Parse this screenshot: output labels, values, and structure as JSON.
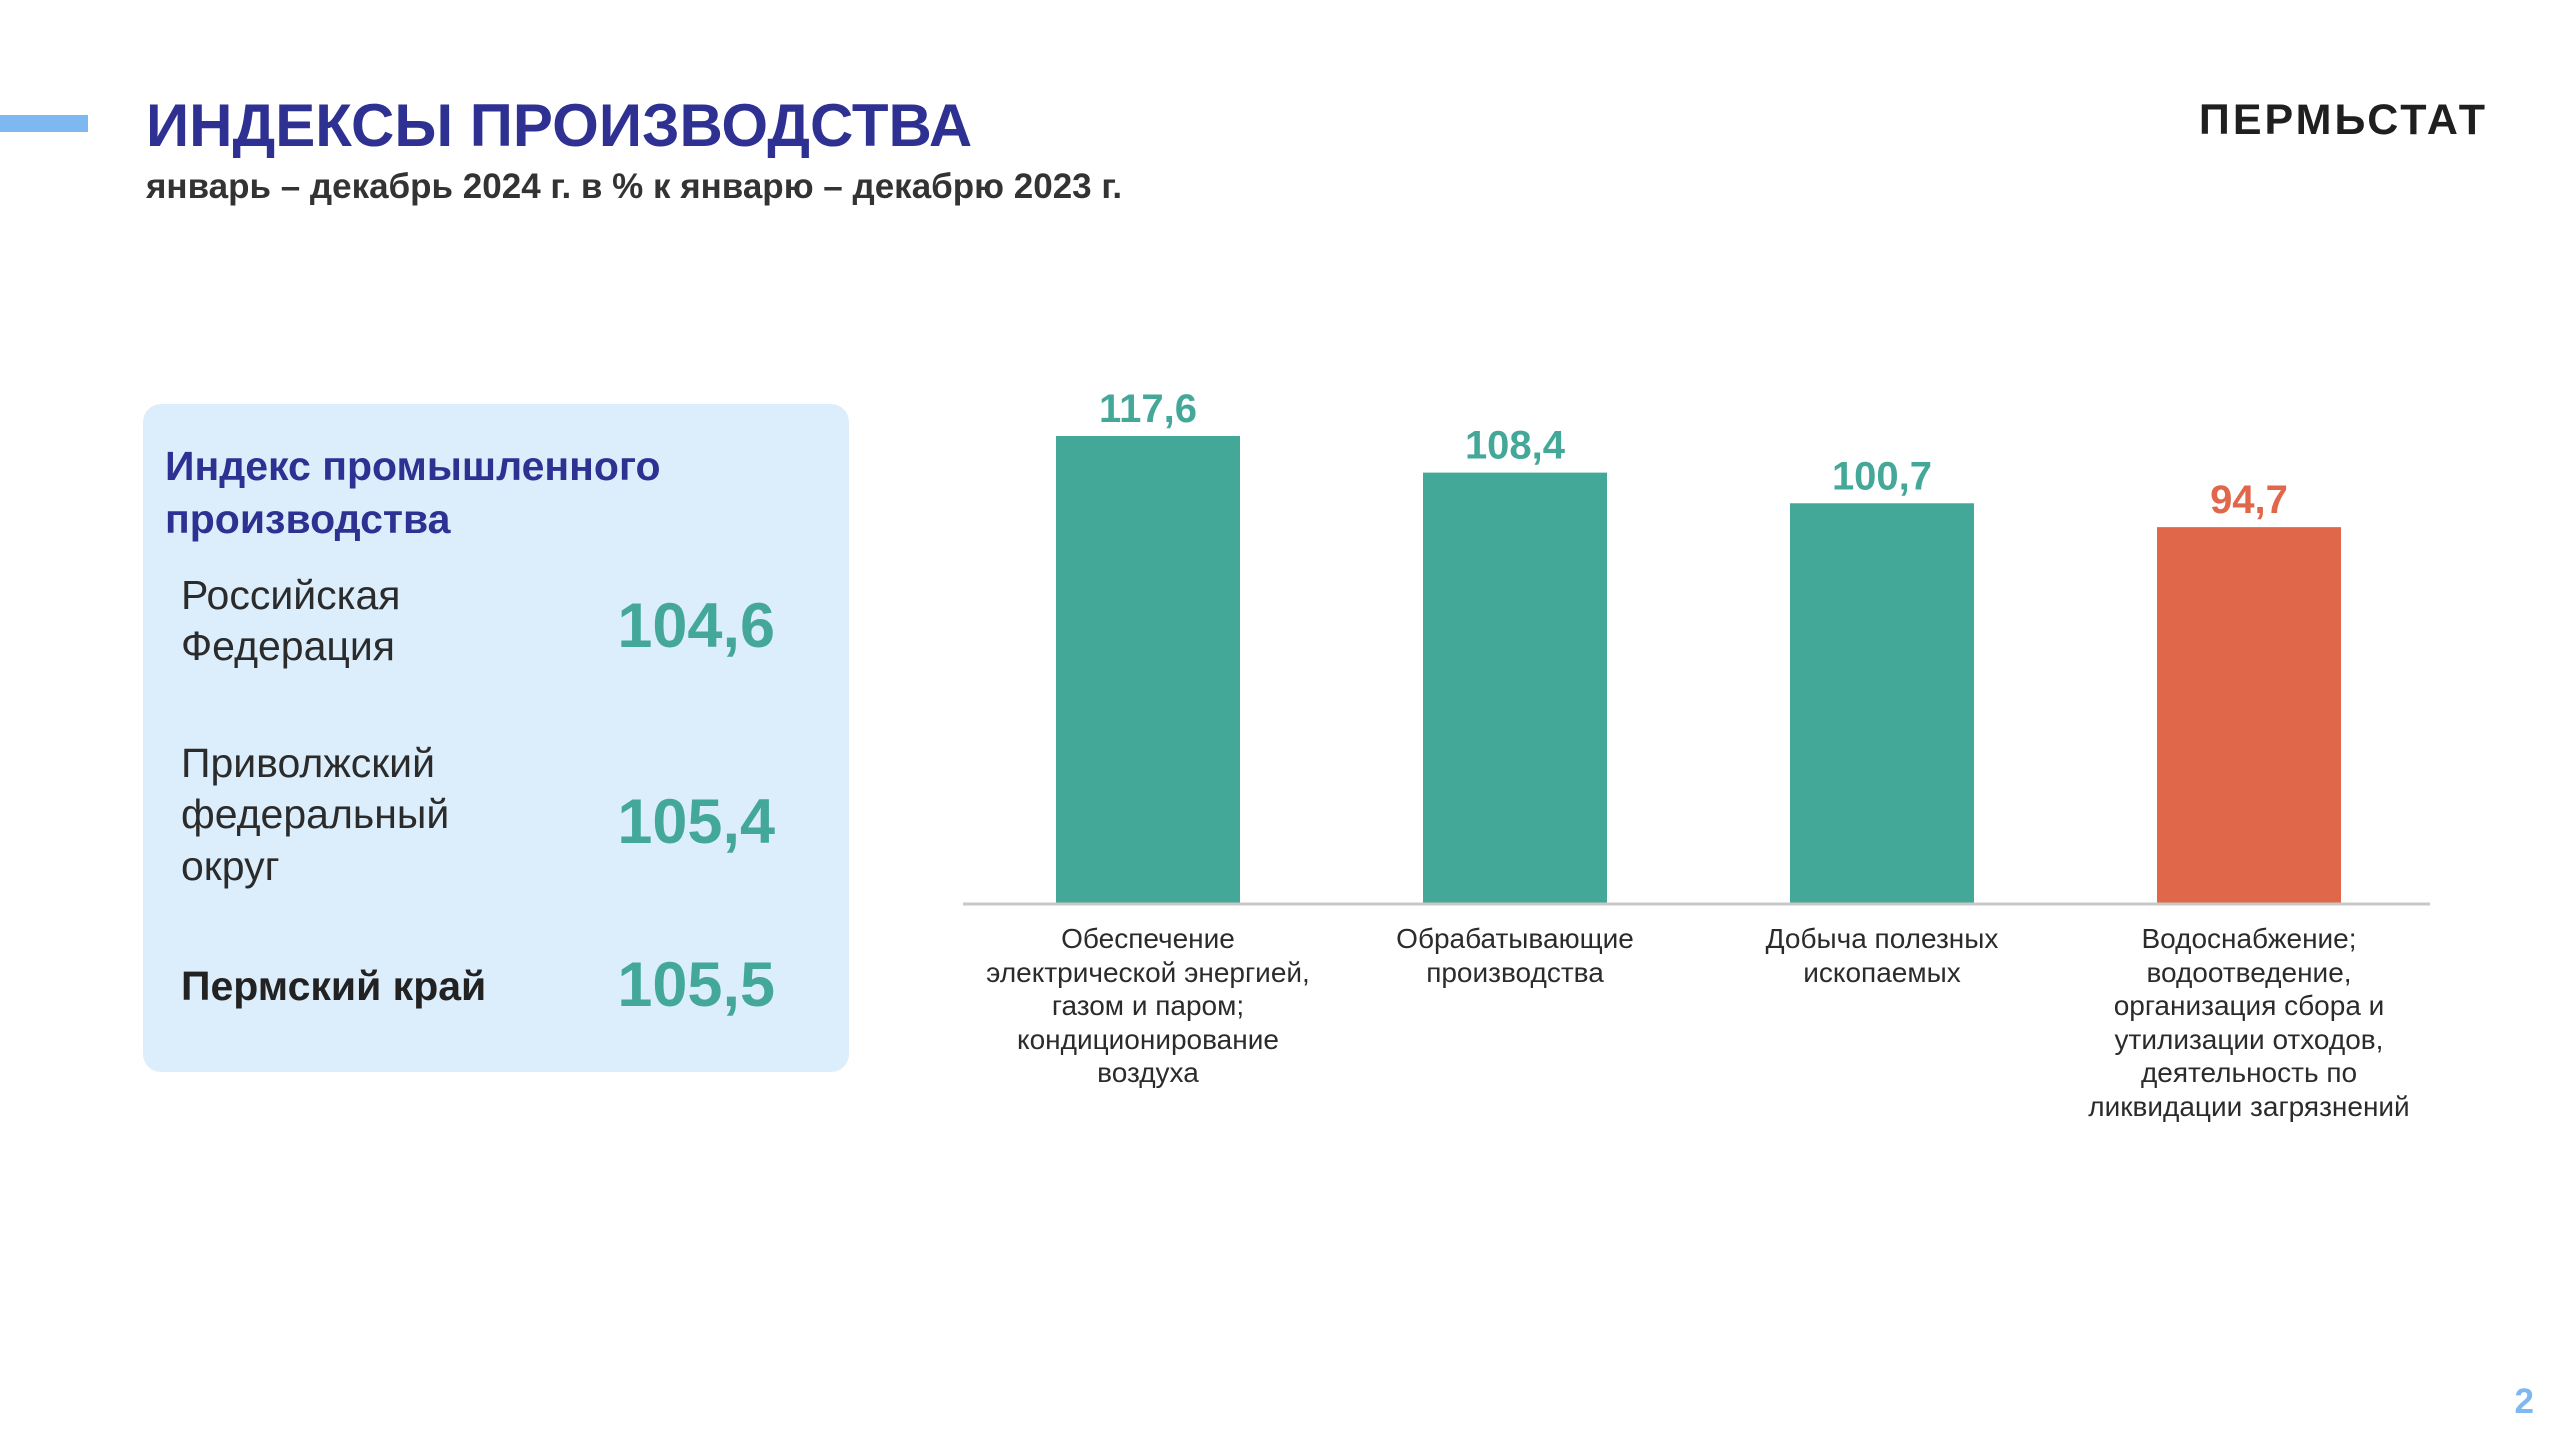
{
  "header": {
    "title": "ИНДЕКСЫ ПРОИЗВОДСТВА",
    "subtitle": "январь – декабрь 2024 г. в % к январю – декабрю 2023 г.",
    "logo": "ПЕРМЬСТАТ",
    "accent_color": "#7db8f0",
    "title_color": "#2e3192"
  },
  "panel": {
    "title": "Индекс промышленного производства",
    "regions": [
      {
        "label": "Российская Федерация",
        "value": "104,6"
      },
      {
        "label": "Приволжский федеральный округ",
        "value": "105,4"
      },
      {
        "label": "Пермский край",
        "value": "105,5"
      }
    ],
    "background_color": "#dcedfb",
    "value_color": "#44a898"
  },
  "chart_data": {
    "type": "bar",
    "categories": [
      "Обеспечение электрической энергией, газом и паром; кондиционирование воздуха",
      "Обрабатывающие производства",
      "Добыча полезных ископаемых",
      "Водоснабжение; водоотведение, организация сбора и утилизации отходов, деятельность по ликвидации загрязнений"
    ],
    "values": [
      117.6,
      108.4,
      100.7,
      94.7
    ],
    "value_labels": [
      "117,6",
      "108,4",
      "100,7",
      "94,7"
    ],
    "colors": [
      "#44a898",
      "#44a898",
      "#44a898",
      "#e1674a"
    ],
    "title": "",
    "xlabel": "",
    "ylabel": "",
    "ylim": [
      0,
      117.6
    ],
    "grid": false,
    "legend": "none"
  },
  "page_number": "2"
}
